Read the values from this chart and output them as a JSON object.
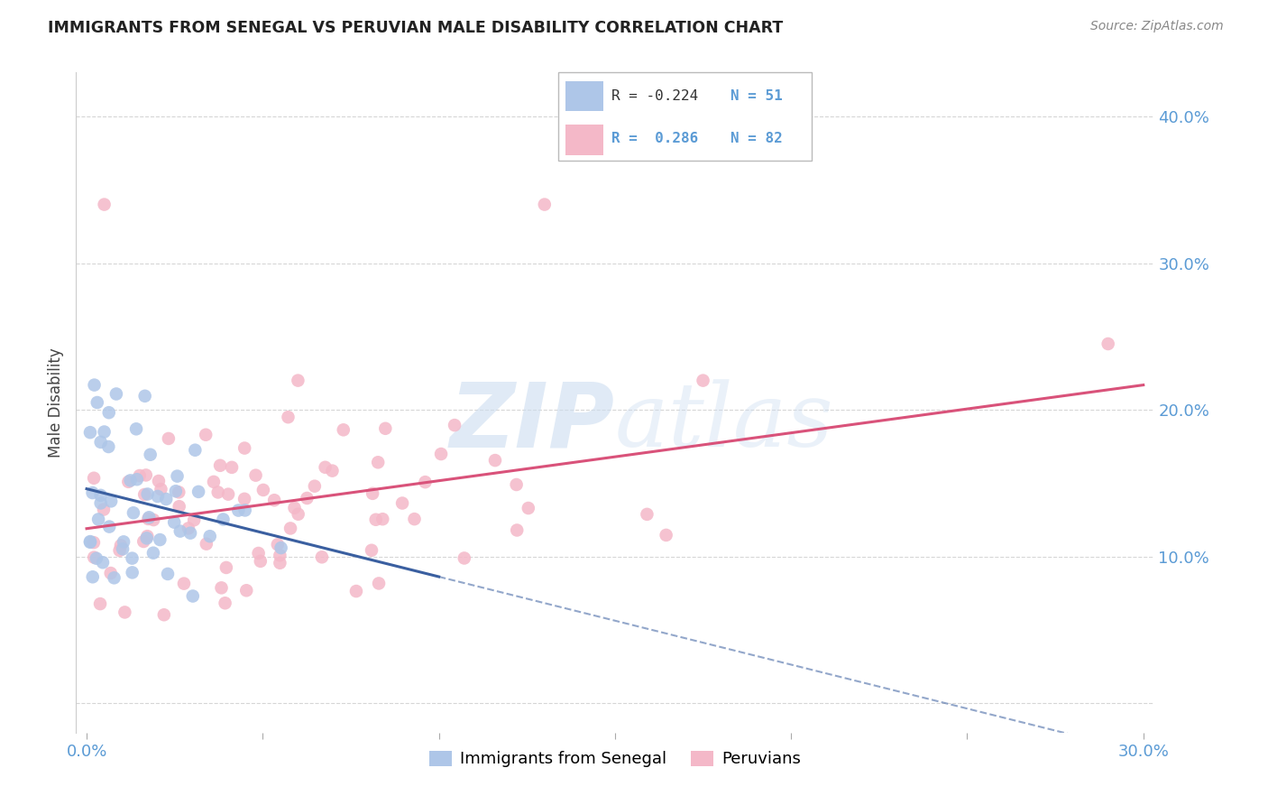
{
  "title": "IMMIGRANTS FROM SENEGAL VS PERUVIAN MALE DISABILITY CORRELATION CHART",
  "source": "Source: ZipAtlas.com",
  "ylabel": "Male Disability",
  "senegal_color": "#aec6e8",
  "senegal_edge": "#aec6e8",
  "peruvian_color": "#f4b8c8",
  "peruvian_edge": "#f4b8c8",
  "senegal_line_color": "#3a5fa0",
  "peruvian_line_color": "#d9527a",
  "tick_color": "#5b9bd5",
  "grid_color": "#cccccc",
  "title_color": "#222222",
  "source_color": "#888888",
  "watermark_color": "#ccddf0",
  "legend_edge_color": "#bbbbbb",
  "xlim": [
    -0.003,
    0.303
  ],
  "ylim": [
    -0.02,
    0.43
  ],
  "x_tick_pos": [
    0.0,
    0.05,
    0.1,
    0.15,
    0.2,
    0.25,
    0.3
  ],
  "x_tick_labels": [
    "0.0%",
    "",
    "",
    "",
    "",
    "",
    "30.0%"
  ],
  "y_tick_pos": [
    0.0,
    0.1,
    0.2,
    0.3,
    0.4
  ],
  "y_right_labels": [
    "",
    "10.0%",
    "20.0%",
    "30.0%",
    "40.0%"
  ],
  "R_senegal": -0.224,
  "N_senegal": 51,
  "R_peruvian": 0.286,
  "N_peruvian": 82,
  "senegal_seed": 10,
  "peruvian_seed": 20
}
